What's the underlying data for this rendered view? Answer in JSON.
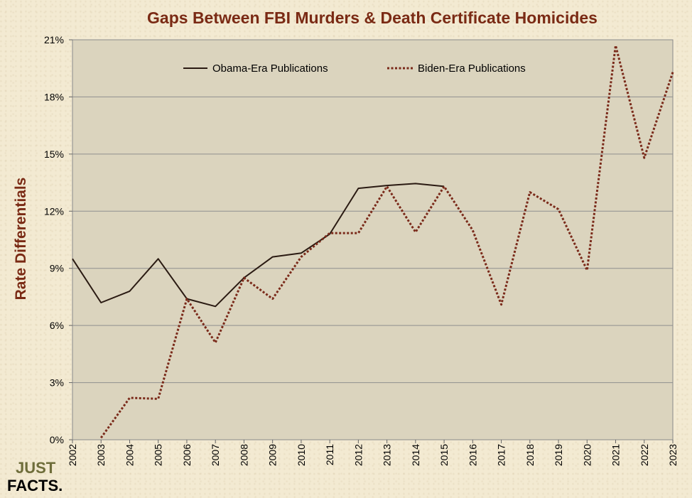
{
  "chart_data": {
    "type": "line",
    "title": "Gaps Between FBI Murders & Death Certificate Homicides",
    "xlabel": "",
    "ylabel": "Rate Differentials",
    "categories": [
      "2002",
      "2003",
      "2004",
      "2005",
      "2006",
      "2007",
      "2008",
      "2009",
      "2010",
      "2011",
      "2012",
      "2013",
      "2014",
      "2015",
      "2016",
      "2017",
      "2018",
      "2019",
      "2020",
      "2021",
      "2022",
      "2023"
    ],
    "ylim": [
      0,
      21
    ],
    "yticks": [
      "0%",
      "3%",
      "6%",
      "9%",
      "12%",
      "15%",
      "18%",
      "21%"
    ],
    "grid": true,
    "legend_position": "top",
    "series": [
      {
        "name": "Obama-Era Publications",
        "color": "#2a1a12",
        "style": "solid",
        "values": [
          9.5,
          7.2,
          7.8,
          9.5,
          7.4,
          7.0,
          8.5,
          9.6,
          9.8,
          10.8,
          13.2,
          13.35,
          13.45,
          13.3,
          null,
          null,
          null,
          null,
          null,
          null,
          null,
          null
        ]
      },
      {
        "name": "Biden-Era Publications",
        "color": "#7a2a1a",
        "style": "dotted",
        "values": [
          null,
          0.1,
          2.2,
          2.15,
          7.4,
          5.1,
          8.5,
          7.4,
          9.6,
          10.85,
          10.85,
          13.3,
          10.9,
          13.3,
          11.0,
          7.1,
          13.0,
          12.1,
          8.9,
          20.7,
          14.8,
          19.3
        ]
      }
    ]
  },
  "logo": {
    "line1": "JUST",
    "line2": "FACTS."
  }
}
